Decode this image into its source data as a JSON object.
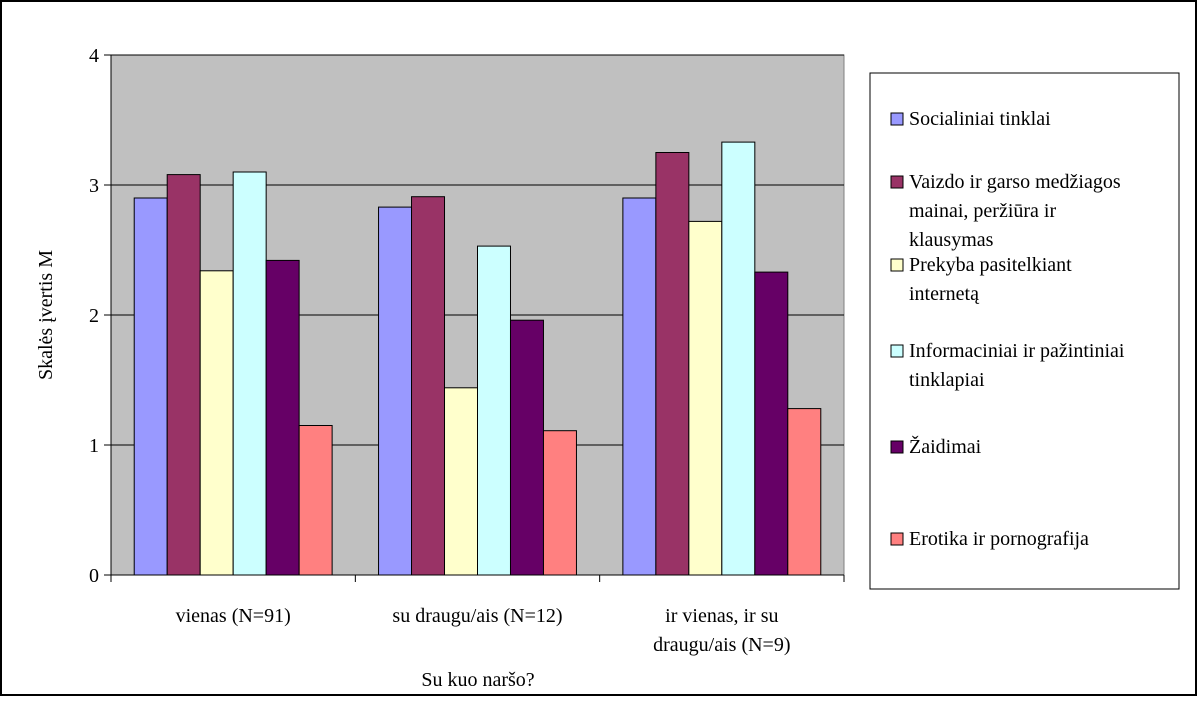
{
  "chart_data": {
    "type": "bar",
    "title": "",
    "xlabel": "Su kuo naršo?",
    "ylabel": "Skalės įvertis M",
    "ylim": [
      0,
      4
    ],
    "yticks": [
      0,
      1,
      2,
      3,
      4
    ],
    "grid": true,
    "legend_position": "right",
    "categories": [
      [
        "vienas (N=91)"
      ],
      [
        "su draugu/ais (N=12)"
      ],
      [
        "ir vienas, ir su",
        "draugu/ais (N=9)"
      ]
    ],
    "series": [
      {
        "name": [
          "Socialiniai tinklai"
        ],
        "color": "#9999ff",
        "values": [
          2.9,
          2.83,
          2.9
        ]
      },
      {
        "name": [
          "Vaizdo ir garso medžiagos",
          "mainai, peržiūra ir",
          "klausymas"
        ],
        "color": "#993366",
        "values": [
          3.08,
          2.91,
          3.25
        ]
      },
      {
        "name": [
          "Prekyba pasitelkiant",
          "internetą"
        ],
        "color": "#ffffcc",
        "values": [
          2.34,
          1.44,
          2.72
        ]
      },
      {
        "name": [
          "Informaciniai ir pažintiniai",
          "tinklapiai"
        ],
        "color": "#ccffff",
        "values": [
          3.1,
          2.53,
          3.33
        ]
      },
      {
        "name": [
          "Žaidimai"
        ],
        "color": "#660066",
        "values": [
          2.42,
          1.96,
          2.33
        ]
      },
      {
        "name": [
          "Erotika ir pornografija"
        ],
        "color": "#ff8080",
        "values": [
          1.15,
          1.11,
          1.28
        ]
      }
    ]
  }
}
